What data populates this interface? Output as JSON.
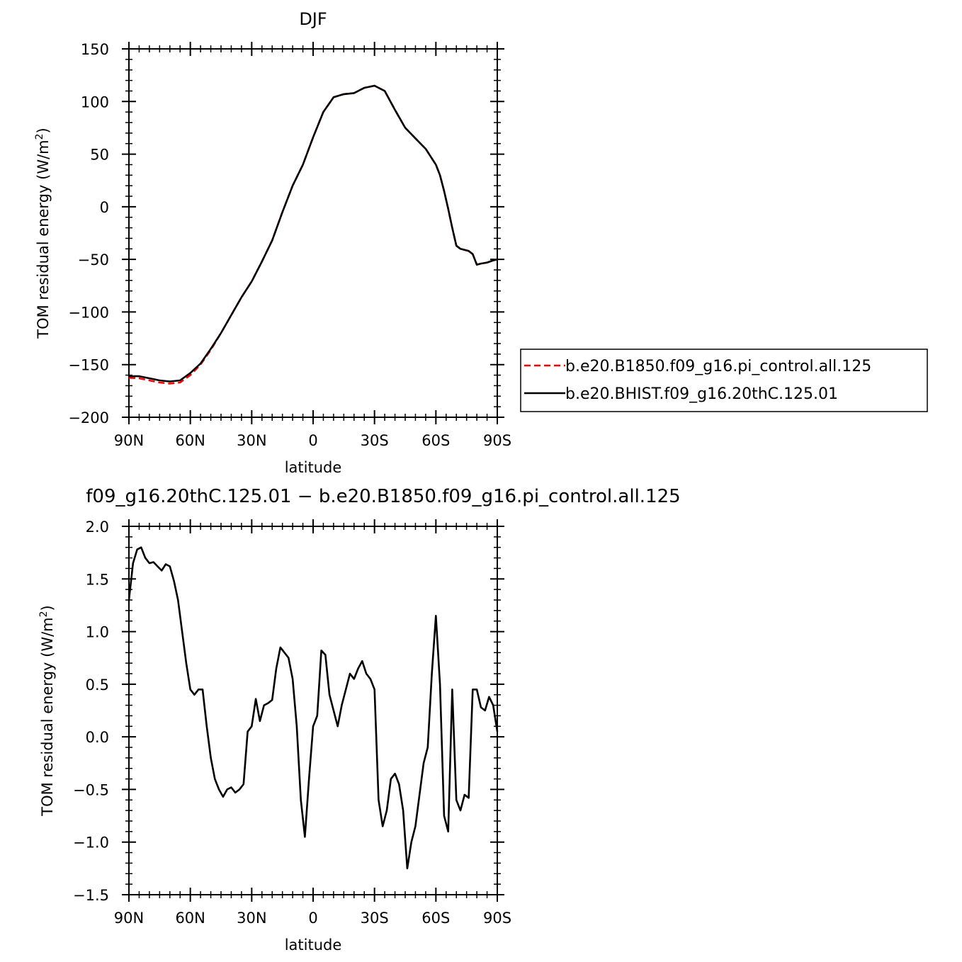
{
  "chart_data": [
    {
      "type": "line",
      "title": "DJF",
      "xlabel": "latitude",
      "ylabel_main": "TOM residual energy (W/m",
      "ylabel_sup": "2",
      "ylabel_close": ")",
      "xlim": [
        -90,
        90
      ],
      "ylim": [
        -200,
        150
      ],
      "xticks": [
        -90,
        -60,
        -30,
        0,
        30,
        60,
        90
      ],
      "xtick_labels": [
        "90N",
        "60N",
        "30N",
        "0",
        "30S",
        "60S",
        "90S"
      ],
      "yticks": [
        150,
        100,
        50,
        0,
        -50,
        -100,
        -150,
        -200
      ],
      "ytick_labels": [
        "150",
        "100",
        "50",
        "0",
        "−50",
        "−100",
        "−150",
        "−200"
      ],
      "legend_position": "right",
      "series": [
        {
          "name": "b.e20.B1850.f09_g16.pi_control.all.125",
          "color": "#ff0000",
          "dash": "dashed",
          "x": [
            -90,
            -85,
            -80,
            -75,
            -70,
            -65,
            -60,
            -55,
            -50,
            -45,
            -40,
            -35,
            -30,
            -25,
            -20,
            -15,
            -10,
            -5,
            0,
            5,
            10,
            15,
            20,
            25,
            30,
            35,
            40,
            45,
            50,
            55,
            60,
            62,
            64,
            66,
            68,
            70,
            72,
            74,
            76,
            78,
            80,
            82,
            85,
            88,
            90
          ],
          "y": [
            -162.5,
            -163,
            -165,
            -167,
            -168,
            -167,
            -160,
            -150,
            -136,
            -120,
            -103,
            -86,
            -71,
            -52,
            -32,
            -5,
            20,
            40,
            66,
            90,
            104,
            107,
            108,
            113,
            115,
            110,
            92,
            75,
            65,
            55,
            40,
            30,
            15,
            -2,
            -20,
            -37,
            -40,
            -41,
            -42,
            -45,
            -55,
            -54,
            -53,
            -51,
            -50
          ]
        },
        {
          "name": "b.e20.BHIST.f09_g16.20thC.125.01",
          "color": "#000000",
          "dash": "solid",
          "x": [
            -90,
            -85,
            -80,
            -75,
            -70,
            -65,
            -60,
            -55,
            -50,
            -45,
            -40,
            -35,
            -30,
            -25,
            -20,
            -15,
            -10,
            -5,
            0,
            5,
            10,
            15,
            20,
            25,
            30,
            35,
            40,
            45,
            50,
            55,
            60,
            62,
            64,
            66,
            68,
            70,
            72,
            74,
            76,
            78,
            80,
            82,
            85,
            88,
            90
          ],
          "y": [
            -161,
            -161,
            -163,
            -165,
            -166,
            -165,
            -158,
            -149,
            -135,
            -120,
            -103,
            -86,
            -71,
            -52,
            -32,
            -5,
            20,
            40,
            66,
            90,
            104,
            107,
            108,
            113,
            115,
            110,
            92,
            75,
            65,
            55,
            40,
            30,
            15,
            -2,
            -20,
            -37,
            -40,
            -41,
            -42,
            -45,
            -55,
            -54,
            -53,
            -51,
            -50
          ]
        }
      ]
    },
    {
      "type": "line",
      "title": "f09_g16.20thC.125.01 − b.e20.B1850.f09_g16.pi_control.all.125",
      "xlabel": "latitude",
      "ylabel_main": "TOM residual energy (W/m",
      "ylabel_sup": "2",
      "ylabel_close": ")",
      "xlim": [
        -90,
        90
      ],
      "ylim": [
        -1.5,
        2.0
      ],
      "xticks": [
        -90,
        -60,
        -30,
        0,
        30,
        60,
        90
      ],
      "xtick_labels": [
        "90N",
        "60N",
        "30N",
        "0",
        "30S",
        "60S",
        "90S"
      ],
      "yticks": [
        2.0,
        1.5,
        1.0,
        0.5,
        0.0,
        -0.5,
        -1.0,
        -1.5
      ],
      "ytick_labels": [
        "2.0",
        "1.5",
        "1.0",
        "0.5",
        "0.0",
        "−0.5",
        "−1.0",
        "−1.5"
      ],
      "series": [
        {
          "color": "#000000",
          "x": [
            -90,
            -88,
            -86,
            -84,
            -82,
            -80,
            -78,
            -76,
            -74,
            -72,
            -70,
            -68,
            -66,
            -64,
            -62,
            -60,
            -58,
            -56,
            -54,
            -52,
            -50,
            -48,
            -46,
            -44,
            -42,
            -40,
            -38,
            -36,
            -34,
            -32,
            -30,
            -28,
            -26,
            -24,
            -22,
            -20,
            -18,
            -16,
            -14,
            -12,
            -10,
            -8,
            -6,
            -4,
            -2,
            0,
            2,
            4,
            6,
            8,
            10,
            12,
            14,
            16,
            18,
            20,
            22,
            24,
            26,
            28,
            30,
            32,
            34,
            36,
            38,
            40,
            42,
            44,
            46,
            48,
            50,
            52,
            54,
            56,
            58,
            60,
            62,
            64,
            66,
            68,
            70,
            72,
            74,
            76,
            78,
            80,
            82,
            84,
            86,
            88,
            90
          ],
          "y": [
            1.3,
            1.65,
            1.78,
            1.8,
            1.7,
            1.65,
            1.66,
            1.62,
            1.58,
            1.64,
            1.62,
            1.48,
            1.3,
            1.0,
            0.7,
            0.45,
            0.4,
            0.45,
            0.45,
            0.1,
            -0.2,
            -0.4,
            -0.5,
            -0.57,
            -0.5,
            -0.48,
            -0.53,
            -0.5,
            -0.45,
            0.05,
            0.1,
            0.36,
            0.15,
            0.3,
            0.32,
            0.35,
            0.65,
            0.85,
            0.8,
            0.75,
            0.55,
            0.1,
            -0.6,
            -0.95,
            -0.4,
            0.1,
            0.2,
            0.82,
            0.78,
            0.4,
            0.25,
            0.1,
            0.3,
            0.45,
            0.6,
            0.55,
            0.65,
            0.72,
            0.6,
            0.55,
            0.45,
            -0.6,
            -0.85,
            -0.7,
            -0.4,
            -0.35,
            -0.45,
            -0.7,
            -1.25,
            -1.0,
            -0.85,
            -0.55,
            -0.25,
            -0.1,
            0.6,
            1.15,
            0.5,
            -0.75,
            -0.9,
            0.45,
            -0.6,
            -0.7,
            -0.55,
            -0.58,
            0.45,
            0.45,
            0.28,
            0.25,
            0.38,
            0.3,
            0.05
          ]
        }
      ]
    }
  ]
}
